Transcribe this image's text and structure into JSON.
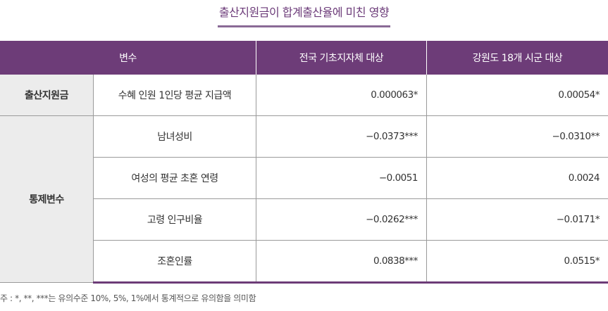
{
  "title": "출산지원금이 합계출산율에 미친 영향",
  "headers": [
    "변수",
    "전국 기초지자체 대상",
    "강원도 18개 시군 대상"
  ],
  "groups": [
    "출산지원금",
    "통제변수"
  ],
  "rows": [
    {
      "var": "수혜 인원 1인당 평균 지급액",
      "national": "0.000063*",
      "gangwon": "0.00054*"
    },
    {
      "var": "남녀성비",
      "national": "−0.0373***",
      "gangwon": "−0.0310**"
    },
    {
      "var": "여성의 평균 초혼 연령",
      "national": "−0.0051",
      "gangwon": "0.0024"
    },
    {
      "var": "고령 인구비율",
      "national": "−0.0262***",
      "gangwon": "−0.0171*"
    },
    {
      "var": "조혼인률",
      "national": "0.0838***",
      "gangwon": "0.0515*"
    }
  ],
  "note": "주 : *, **, ***는 유의수준 10%, 5%, 1%에서 통계적으로 유의함을 의미함",
  "colors": {
    "header": "#6d3c78",
    "group_bg": "#ececec"
  }
}
